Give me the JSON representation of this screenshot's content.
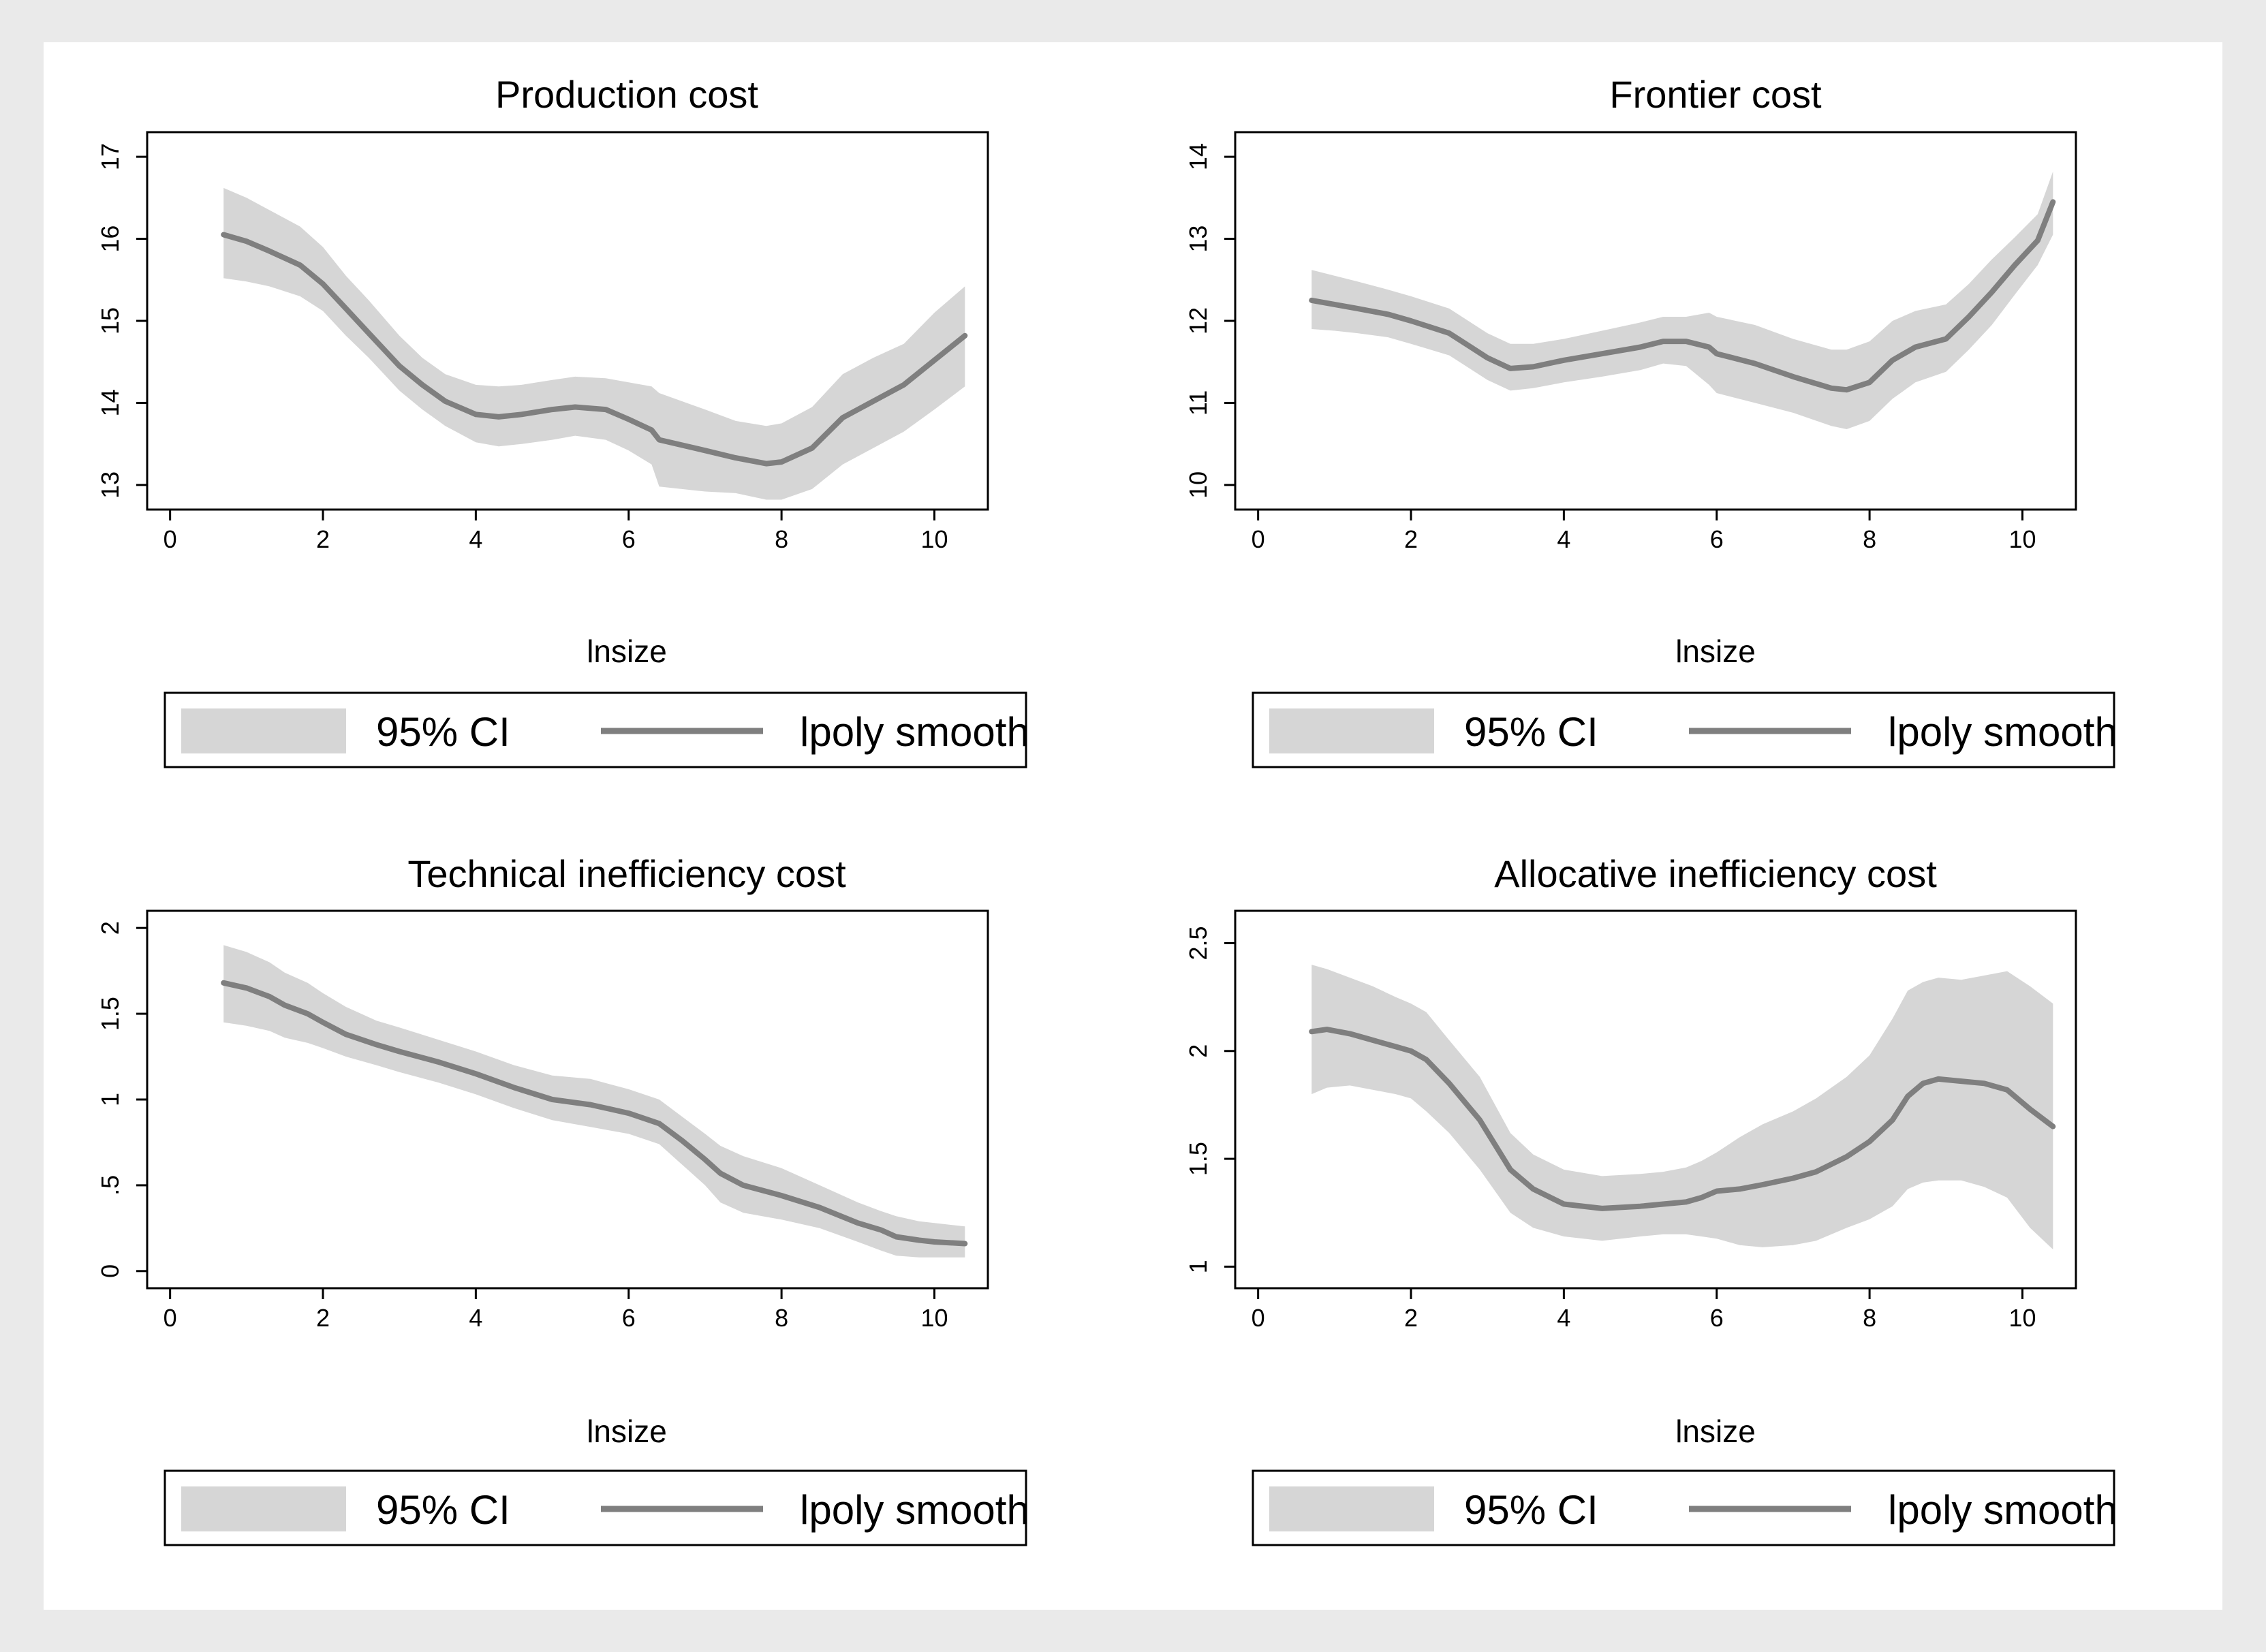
{
  "colors": {
    "band": "#d6d6d6",
    "line": "#7f7f7f",
    "frame": "#000000",
    "background": "#eaeaea",
    "panel": "#ffffff"
  },
  "legend": {
    "ci_label": "95% CI",
    "line_label": "lpoly smooth"
  },
  "chart_data": [
    {
      "type": "area",
      "title": "Production cost",
      "xlabel": "lnsize",
      "ylabel": "",
      "xlim": [
        -0.3,
        10.7
      ],
      "ylim": [
        12.7,
        17.3
      ],
      "xticks": [
        0,
        2,
        4,
        6,
        8,
        10
      ],
      "xtick_labels": [
        "0",
        "2",
        "4",
        "6",
        "8",
        "10"
      ],
      "yticks": [
        13,
        14,
        15,
        16,
        17
      ],
      "ytick_labels": [
        "13",
        "14",
        "15",
        "16",
        "17"
      ],
      "series": [
        {
          "name": "lpoly smooth",
          "x": [
            0.7,
            1.0,
            1.3,
            1.7,
            2.0,
            2.3,
            2.6,
            3.0,
            3.3,
            3.6,
            4.0,
            4.3,
            4.6,
            5.0,
            5.3,
            5.7,
            6.0,
            6.3,
            6.4,
            7.0,
            7.4,
            7.8,
            8.0,
            8.4,
            8.8,
            9.2,
            9.6,
            10.0,
            10.4
          ],
          "y": [
            16.05,
            15.97,
            15.85,
            15.68,
            15.45,
            15.15,
            14.85,
            14.45,
            14.22,
            14.02,
            13.86,
            13.83,
            13.86,
            13.92,
            13.95,
            13.92,
            13.8,
            13.67,
            13.55,
            13.42,
            13.33,
            13.26,
            13.28,
            13.45,
            13.82,
            14.02,
            14.22,
            14.52,
            14.82
          ]
        },
        {
          "name": "95% CI",
          "x": [
            0.7,
            1.0,
            1.3,
            1.7,
            2.0,
            2.3,
            2.6,
            3.0,
            3.3,
            3.6,
            4.0,
            4.3,
            4.6,
            5.0,
            5.3,
            5.7,
            6.0,
            6.3,
            6.4,
            7.0,
            7.4,
            7.8,
            8.0,
            8.4,
            8.8,
            9.2,
            9.6,
            10.0,
            10.4
          ],
          "lower": [
            15.52,
            15.48,
            15.42,
            15.3,
            15.12,
            14.82,
            14.55,
            14.15,
            13.92,
            13.72,
            13.52,
            13.47,
            13.5,
            13.55,
            13.6,
            13.55,
            13.42,
            13.25,
            12.98,
            12.92,
            12.9,
            12.82,
            12.82,
            12.95,
            13.25,
            13.45,
            13.65,
            13.92,
            14.2
          ],
          "upper": [
            16.62,
            16.5,
            16.35,
            16.15,
            15.9,
            15.55,
            15.25,
            14.82,
            14.55,
            14.35,
            14.22,
            14.2,
            14.22,
            14.28,
            14.32,
            14.3,
            14.25,
            14.2,
            14.12,
            13.92,
            13.78,
            13.72,
            13.75,
            13.95,
            14.35,
            14.55,
            14.72,
            15.1,
            15.42
          ]
        }
      ],
      "legend": [
        "95% CI",
        "lpoly smooth"
      ],
      "legend_position": "bottom"
    },
    {
      "type": "area",
      "title": "Frontier cost",
      "xlabel": "lnsize",
      "ylabel": "",
      "xlim": [
        -0.3,
        10.7
      ],
      "ylim": [
        9.7,
        14.3
      ],
      "xticks": [
        0,
        2,
        4,
        6,
        8,
        10
      ],
      "xtick_labels": [
        "0",
        "2",
        "4",
        "6",
        "8",
        "10"
      ],
      "yticks": [
        10,
        11,
        12,
        13,
        14
      ],
      "ytick_labels": [
        "10",
        "11",
        "12",
        "13",
        "14"
      ],
      "series": [
        {
          "name": "lpoly smooth",
          "x": [
            0.7,
            1.0,
            1.3,
            1.7,
            2.0,
            2.5,
            3.0,
            3.3,
            3.6,
            4.0,
            4.5,
            5.0,
            5.3,
            5.6,
            5.9,
            6.0,
            6.5,
            7.0,
            7.5,
            7.7,
            8.0,
            8.3,
            8.6,
            9.0,
            9.3,
            9.6,
            9.9,
            10.2,
            10.4
          ],
          "y": [
            12.25,
            12.2,
            12.15,
            12.08,
            12.0,
            11.85,
            11.55,
            11.42,
            11.44,
            11.52,
            11.6,
            11.68,
            11.75,
            11.75,
            11.68,
            11.6,
            11.48,
            11.32,
            11.18,
            11.16,
            11.25,
            11.52,
            11.68,
            11.78,
            12.05,
            12.35,
            12.68,
            12.98,
            13.45
          ]
        },
        {
          "name": "95% CI",
          "x": [
            0.7,
            1.0,
            1.3,
            1.7,
            2.0,
            2.5,
            3.0,
            3.3,
            3.6,
            4.0,
            4.5,
            5.0,
            5.3,
            5.6,
            5.9,
            6.0,
            6.5,
            7.0,
            7.5,
            7.7,
            8.0,
            8.3,
            8.6,
            9.0,
            9.3,
            9.6,
            9.9,
            10.2,
            10.4
          ],
          "lower": [
            11.9,
            11.88,
            11.85,
            11.8,
            11.72,
            11.58,
            11.28,
            11.15,
            11.18,
            11.25,
            11.32,
            11.4,
            11.48,
            11.45,
            11.22,
            11.12,
            11.0,
            10.88,
            10.72,
            10.68,
            10.78,
            11.05,
            11.25,
            11.38,
            11.65,
            11.95,
            12.32,
            12.68,
            13.05
          ],
          "upper": [
            12.62,
            12.55,
            12.48,
            12.38,
            12.3,
            12.15,
            11.85,
            11.72,
            11.72,
            11.78,
            11.88,
            11.98,
            12.05,
            12.05,
            12.1,
            12.05,
            11.95,
            11.78,
            11.65,
            11.65,
            11.75,
            12.0,
            12.12,
            12.2,
            12.45,
            12.75,
            13.02,
            13.3,
            13.82
          ]
        }
      ],
      "legend": [
        "95% CI",
        "lpoly smooth"
      ],
      "legend_position": "bottom"
    },
    {
      "type": "area",
      "title": "Technical inefficiency cost",
      "xlabel": "lnsize",
      "ylabel": "",
      "xlim": [
        -0.3,
        10.7
      ],
      "ylim": [
        -0.1,
        2.1
      ],
      "xticks": [
        0,
        2,
        4,
        6,
        8,
        10
      ],
      "xtick_labels": [
        "0",
        "2",
        "4",
        "6",
        "8",
        "10"
      ],
      "yticks": [
        0,
        0.5,
        1,
        1.5,
        2
      ],
      "ytick_labels": [
        "0",
        ".5",
        "1",
        "1.5",
        "2"
      ],
      "series": [
        {
          "name": "lpoly smooth",
          "x": [
            0.7,
            1.0,
            1.3,
            1.5,
            1.8,
            2.0,
            2.3,
            2.7,
            3.0,
            3.5,
            4.0,
            4.5,
            5.0,
            5.5,
            6.0,
            6.4,
            6.7,
            7.0,
            7.2,
            7.5,
            8.0,
            8.5,
            9.0,
            9.3,
            9.5,
            9.8,
            10.0,
            10.4
          ],
          "y": [
            1.68,
            1.65,
            1.6,
            1.55,
            1.5,
            1.45,
            1.38,
            1.32,
            1.28,
            1.22,
            1.15,
            1.07,
            1.0,
            0.97,
            0.92,
            0.86,
            0.76,
            0.65,
            0.57,
            0.5,
            0.44,
            0.37,
            0.28,
            0.24,
            0.2,
            0.18,
            0.17,
            0.16
          ]
        },
        {
          "name": "95% CI",
          "x": [
            0.7,
            1.0,
            1.3,
            1.5,
            1.8,
            2.0,
            2.3,
            2.7,
            3.0,
            3.5,
            4.0,
            4.5,
            5.0,
            5.5,
            6.0,
            6.4,
            6.7,
            7.0,
            7.2,
            7.5,
            8.0,
            8.5,
            9.0,
            9.3,
            9.5,
            9.8,
            10.0,
            10.4
          ],
          "lower": [
            1.45,
            1.43,
            1.4,
            1.36,
            1.33,
            1.3,
            1.25,
            1.2,
            1.16,
            1.1,
            1.03,
            0.95,
            0.88,
            0.84,
            0.8,
            0.74,
            0.62,
            0.5,
            0.4,
            0.34,
            0.3,
            0.25,
            0.17,
            0.12,
            0.09,
            0.08,
            0.08,
            0.08
          ],
          "upper": [
            1.9,
            1.86,
            1.8,
            1.74,
            1.68,
            1.62,
            1.54,
            1.46,
            1.42,
            1.35,
            1.28,
            1.2,
            1.14,
            1.12,
            1.06,
            1.0,
            0.9,
            0.8,
            0.73,
            0.67,
            0.6,
            0.5,
            0.4,
            0.35,
            0.32,
            0.29,
            0.28,
            0.26
          ]
        }
      ],
      "legend": [
        "95% CI",
        "lpoly smooth"
      ],
      "legend_position": "bottom"
    },
    {
      "type": "area",
      "title": "Allocative inefficiency cost",
      "xlabel": "lnsize",
      "ylabel": "",
      "xlim": [
        -0.3,
        10.7
      ],
      "ylim": [
        0.9,
        2.65
      ],
      "xticks": [
        0,
        2,
        4,
        6,
        8,
        10
      ],
      "xtick_labels": [
        "0",
        "2",
        "4",
        "6",
        "8",
        "10"
      ],
      "yticks": [
        1,
        1.5,
        2,
        2.5
      ],
      "ytick_labels": [
        "1",
        "1.5",
        "2",
        "2.5"
      ],
      "series": [
        {
          "name": "lpoly smooth",
          "x": [
            0.7,
            0.9,
            1.2,
            1.5,
            1.8,
            2.0,
            2.2,
            2.5,
            2.9,
            3.3,
            3.6,
            4.0,
            4.5,
            5.0,
            5.3,
            5.6,
            5.8,
            6.0,
            6.3,
            6.6,
            7.0,
            7.3,
            7.7,
            8.0,
            8.3,
            8.5,
            8.7,
            8.9,
            9.2,
            9.5,
            9.8,
            10.1,
            10.4
          ],
          "y": [
            2.09,
            2.1,
            2.08,
            2.05,
            2.02,
            2.0,
            1.96,
            1.85,
            1.68,
            1.45,
            1.36,
            1.29,
            1.27,
            1.28,
            1.29,
            1.3,
            1.32,
            1.35,
            1.36,
            1.38,
            1.41,
            1.44,
            1.51,
            1.58,
            1.68,
            1.79,
            1.85,
            1.87,
            1.86,
            1.85,
            1.82,
            1.73,
            1.65
          ]
        },
        {
          "name": "95% CI",
          "x": [
            0.7,
            0.9,
            1.2,
            1.5,
            1.8,
            2.0,
            2.2,
            2.5,
            2.9,
            3.3,
            3.6,
            4.0,
            4.5,
            5.0,
            5.3,
            5.6,
            5.8,
            6.0,
            6.3,
            6.6,
            7.0,
            7.3,
            7.7,
            8.0,
            8.3,
            8.5,
            8.7,
            8.9,
            9.2,
            9.5,
            9.8,
            10.1,
            10.4
          ],
          "lower": [
            1.8,
            1.83,
            1.84,
            1.82,
            1.8,
            1.78,
            1.72,
            1.62,
            1.45,
            1.25,
            1.18,
            1.14,
            1.12,
            1.14,
            1.15,
            1.15,
            1.14,
            1.13,
            1.1,
            1.09,
            1.1,
            1.12,
            1.18,
            1.22,
            1.28,
            1.36,
            1.39,
            1.4,
            1.4,
            1.37,
            1.32,
            1.18,
            1.08
          ],
          "upper": [
            2.4,
            2.38,
            2.34,
            2.3,
            2.25,
            2.22,
            2.18,
            2.05,
            1.88,
            1.62,
            1.52,
            1.45,
            1.42,
            1.43,
            1.44,
            1.46,
            1.49,
            1.53,
            1.6,
            1.66,
            1.72,
            1.78,
            1.88,
            1.98,
            2.15,
            2.28,
            2.32,
            2.34,
            2.33,
            2.35,
            2.37,
            2.3,
            2.22
          ]
        }
      ],
      "legend": [
        "95% CI",
        "lpoly smooth"
      ],
      "legend_position": "bottom"
    }
  ]
}
